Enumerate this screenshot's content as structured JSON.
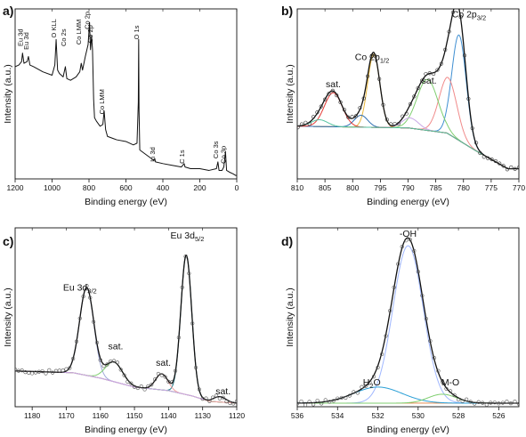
{
  "figure": {
    "panels": [
      {
        "id": "a",
        "label": "a)",
        "chart_type": "line",
        "xlabel": "Binding energy (eV)",
        "ylabel": "Intensity (a.u.)",
        "xlim": [
          1200,
          0
        ],
        "xticks": [
          1200,
          1000,
          800,
          600,
          400,
          200,
          0
        ],
        "show_yticks": false,
        "annotations": [
          {
            "text": "Eu 3d",
            "x": 1160,
            "y": 0.78,
            "rotate": true
          },
          {
            "text": "Eu 3d",
            "x": 1128,
            "y": 0.76,
            "rotate": true
          },
          {
            "text": "O KLL",
            "x": 978,
            "y": 0.83,
            "rotate": true
          },
          {
            "text": "Co 2s",
            "x": 925,
            "y": 0.78,
            "rotate": true
          },
          {
            "text": "Co LMM",
            "x": 843,
            "y": 0.79,
            "rotate": true
          },
          {
            "text": "Co 2p",
            "x": 797,
            "y": 0.88,
            "rotate": true
          },
          {
            "text": "Co 2p",
            "x": 781,
            "y": 0.8,
            "rotate": true
          },
          {
            "text": "Co LMM",
            "x": 718,
            "y": 0.38,
            "rotate": true
          },
          {
            "text": "O 1s",
            "x": 531,
            "y": 0.82,
            "rotate": true
          },
          {
            "text": "In 3d",
            "x": 444,
            "y": 0.1,
            "rotate": true
          },
          {
            "text": "C 1s",
            "x": 285,
            "y": 0.09,
            "rotate": true
          },
          {
            "text": "Co 3s",
            "x": 102,
            "y": 0.12,
            "rotate": true
          },
          {
            "text": "Co 3p",
            "x": 61,
            "y": 0.09,
            "rotate": true
          }
        ]
      },
      {
        "id": "b",
        "label": "b)",
        "chart_type": "line",
        "xlabel": "Binding energy (eV)",
        "ylabel": "Intensity (a.u.)",
        "xlim": [
          810,
          770
        ],
        "xticks": [
          810,
          805,
          800,
          795,
          790,
          785,
          780,
          775,
          770
        ],
        "show_yticks": false,
        "annotations": [
          {
            "text": "Co 2p",
            "sub": "3/2",
            "x": 779,
            "y": 0.95
          },
          {
            "text": "Co 2p",
            "sub": "1/2",
            "x": 796.5,
            "y": 0.7
          },
          {
            "text": "sat.",
            "x": 803.5,
            "y": 0.54
          },
          {
            "text": "sat.",
            "x": 786.2,
            "y": 0.56
          }
        ]
      },
      {
        "id": "c",
        "label": "c)",
        "chart_type": "line",
        "xlabel": "Binding energy (eV)",
        "ylabel": "Intensity (a.u.)",
        "xlim": [
          1185,
          1120
        ],
        "xticks": [
          1180,
          1170,
          1160,
          1150,
          1140,
          1130,
          1120
        ],
        "show_yticks": false,
        "annotations": [
          {
            "text": "Eu 3d",
            "sub": "5/2",
            "x": 1134.5,
            "y": 0.94
          },
          {
            "text": "Eu 3d",
            "sub": "3/2",
            "x": 1166,
            "y": 0.65
          },
          {
            "text": "sat.",
            "x": 1155.5,
            "y": 0.32
          },
          {
            "text": "sat.",
            "x": 1141.5,
            "y": 0.23
          },
          {
            "text": "sat.",
            "x": 1124,
            "y": 0.07
          }
        ]
      },
      {
        "id": "d",
        "label": "d)",
        "chart_type": "line",
        "xlabel": "Binding energy (eV)",
        "ylabel": "Intensity (a.u.)",
        "xlim": [
          536,
          525
        ],
        "xticks": [
          536,
          534,
          532,
          530,
          528,
          526
        ],
        "show_yticks": false,
        "annotations": [
          {
            "text": "-OH",
            "x": 530.5,
            "y": 0.95
          },
          {
            "text": "H",
            "sub": "2",
            "tail": "O",
            "x": 532.3,
            "y": 0.12
          },
          {
            "text": "M-O",
            "x": 528.4,
            "y": 0.12
          }
        ]
      }
    ]
  },
  "chart_data": [
    {
      "type": "line",
      "panel": "a",
      "xlabel": "Binding energy (eV)",
      "ylabel": "Intensity (a.u.)",
      "xlim": [
        1200,
        0
      ],
      "series": [
        {
          "style": "survey",
          "color": "#111111",
          "x": [
            1200,
            1180,
            1165,
            1160,
            1152,
            1135,
            1128,
            1120,
            1100,
            1050,
            1000,
            985,
            978,
            970,
            960,
            940,
            928,
            920,
            900,
            870,
            850,
            842,
            835,
            820,
            805,
            797,
            792,
            786,
            781,
            775,
            770,
            760,
            740,
            725,
            718,
            710,
            700,
            650,
            600,
            560,
            540,
            533,
            531,
            529,
            525,
            500,
            450,
            444,
            440,
            400,
            350,
            300,
            285,
            280,
            250,
            200,
            150,
            110,
            102,
            96,
            80,
            70,
            61,
            55,
            40,
            20,
            5,
            0
          ],
          "y": [
            0.66,
            0.67,
            0.69,
            0.74,
            0.68,
            0.69,
            0.72,
            0.67,
            0.66,
            0.63,
            0.61,
            0.67,
            0.82,
            0.64,
            0.62,
            0.6,
            0.66,
            0.59,
            0.58,
            0.6,
            0.63,
            0.68,
            0.64,
            0.72,
            0.79,
            0.92,
            0.76,
            0.84,
            0.76,
            0.47,
            0.36,
            0.34,
            0.31,
            0.32,
            0.4,
            0.29,
            0.25,
            0.23,
            0.22,
            0.2,
            0.21,
            0.45,
            0.82,
            0.4,
            0.17,
            0.15,
            0.11,
            0.12,
            0.1,
            0.09,
            0.08,
            0.07,
            0.09,
            0.07,
            0.06,
            0.06,
            0.05,
            0.06,
            0.1,
            0.05,
            0.05,
            0.07,
            0.16,
            0.05,
            0.04,
            0.03,
            0.02,
            0.02
          ]
        }
      ]
    },
    {
      "type": "line",
      "panel": "b",
      "xlabel": "Binding energy (eV)",
      "ylabel": "Intensity (a.u.)",
      "xlim": [
        810,
        770
      ],
      "model": "gaussian_components",
      "baseline": {
        "x": [
          810,
          790,
          783,
          778,
          772
        ],
        "y": [
          0.31,
          0.3,
          0.27,
          0.17,
          0.06
        ]
      },
      "components": [
        {
          "color": "#3f8fd2",
          "center": 780.8,
          "height": 0.62,
          "sigma": 1.3
        },
        {
          "color": "#f08a8a",
          "center": 782.8,
          "height": 0.33,
          "sigma": 1.6
        },
        {
          "color": "#7fcf6f",
          "center": 786.5,
          "height": 0.3,
          "sigma": 1.9
        },
        {
          "color": "#c9a7e6",
          "center": 789.6,
          "height": 0.06,
          "sigma": 1.5
        },
        {
          "color": "#e8b63b",
          "center": 796.2,
          "height": 0.43,
          "sigma": 1.1
        },
        {
          "color": "#2f6fb3",
          "center": 798.5,
          "height": 0.07,
          "sigma": 1.2
        },
        {
          "color": "#e53935",
          "center": 803.5,
          "height": 0.2,
          "sigma": 1.6
        },
        {
          "color": "#56c3a0",
          "center": 806.0,
          "height": 0.04,
          "sigma": 1.5
        }
      ],
      "envelope_color": "#111111",
      "markers": {
        "step": 0.7,
        "color": "#333333"
      }
    },
    {
      "type": "line",
      "panel": "c",
      "xlabel": "Binding energy (eV)",
      "ylabel": "Intensity (a.u.)",
      "xlim": [
        1185,
        1120
      ],
      "model": "gaussian_components",
      "baseline": {
        "x": [
          1185,
          1168,
          1160,
          1150,
          1140,
          1133,
          1128,
          1120
        ],
        "y": [
          0.2,
          0.19,
          0.16,
          0.11,
          0.09,
          0.06,
          0.03,
          0.02
        ]
      },
      "components": [
        {
          "color": "#1a7a8a",
          "center": 1134.8,
          "height": 0.78,
          "sigma": 1.6
        },
        {
          "color": "#9fa8da",
          "center": 1164.0,
          "height": 0.49,
          "sigma": 2.1
        },
        {
          "color": "#7fcf6f",
          "center": 1156.0,
          "height": 0.11,
          "sigma": 2.5
        },
        {
          "color": "#f0a0a0",
          "center": 1142.0,
          "height": 0.09,
          "sigma": 1.8
        },
        {
          "color": "#c9a7e6",
          "center": 1125.0,
          "height": 0.03,
          "sigma": 1.8
        }
      ],
      "envelope_color": "#111111",
      "markers": {
        "step": 1.0,
        "color": "#555555"
      }
    },
    {
      "type": "line",
      "panel": "d",
      "xlabel": "Binding energy (eV)",
      "ylabel": "Intensity (a.u.)",
      "xlim": [
        536,
        525
      ],
      "model": "gaussian_components",
      "baseline": {
        "x": [
          536,
          525
        ],
        "y": [
          0.02,
          0.02
        ]
      },
      "components": [
        {
          "color": "#9fb6ff",
          "center": 530.5,
          "height": 0.88,
          "sigma": 0.75
        },
        {
          "color": "#2a9fd6",
          "center": 532.0,
          "height": 0.09,
          "sigma": 1.2
        },
        {
          "color": "#7fcf6f",
          "center": 528.8,
          "height": 0.05,
          "sigma": 0.7
        }
      ],
      "envelope_color": "#111111",
      "markers": {
        "step": 0.2,
        "color": "#555555"
      }
    }
  ]
}
